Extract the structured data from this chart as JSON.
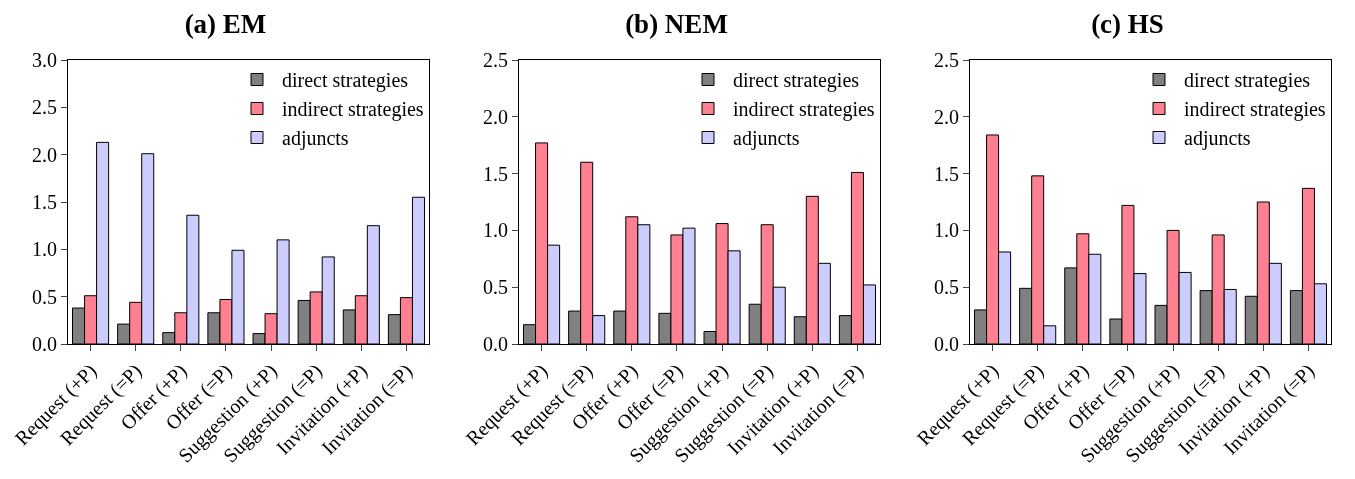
{
  "chart_data": [
    {
      "type": "bar",
      "title": "(a) EM",
      "categories": [
        "Request (+P)",
        "Request (=P)",
        "Offer (+P)",
        "Offer (=P)",
        "Suggestion (+P)",
        "Suggestion (=P)",
        "Invitation (+P)",
        "Invitation (=P)"
      ],
      "series": [
        {
          "name": "direct strategies",
          "color": "#808080",
          "values": [
            0.38,
            0.21,
            0.12,
            0.33,
            0.11,
            0.46,
            0.36,
            0.31
          ]
        },
        {
          "name": "indirect strategies",
          "color": "#ff8090",
          "values": [
            0.51,
            0.44,
            0.33,
            0.47,
            0.32,
            0.55,
            0.51,
            0.49
          ]
        },
        {
          "name": "adjuncts",
          "color": "#ccccff",
          "values": [
            2.13,
            2.01,
            1.36,
            0.99,
            1.1,
            0.92,
            1.25,
            1.55
          ]
        }
      ],
      "ylim": [
        0,
        3.0
      ],
      "yticks": [
        {
          "value": 0,
          "label": "0.0"
        },
        0.5,
        {
          "value": 1,
          "label": "1.0"
        },
        1.5,
        {
          "value": 2,
          "label": "2.0"
        },
        2.5,
        {
          "value": 3,
          "label": "3.0"
        }
      ],
      "grid": false,
      "legend": "top right"
    },
    {
      "type": "bar",
      "title": "(b) NEM",
      "categories": [
        "Request (+P)",
        "Request (=P)",
        "Offer (+P)",
        "Offer (=P)",
        "Suggestion (+P)",
        "Suggestion (=P)",
        "Invitation (+P)",
        "Invitation (=P)"
      ],
      "series": [
        {
          "name": "direct strategies",
          "color": "#808080",
          "values": [
            0.17,
            0.29,
            0.29,
            0.27,
            0.11,
            0.35,
            0.24,
            0.25
          ]
        },
        {
          "name": "indirect strategies",
          "color": "#ff8090",
          "values": [
            1.77,
            1.6,
            1.12,
            0.96,
            1.06,
            1.05,
            1.3,
            1.51
          ]
        },
        {
          "name": "adjuncts",
          "color": "#ccccff",
          "values": [
            0.87,
            0.25,
            1.05,
            1.02,
            0.82,
            0.5,
            0.71,
            0.52
          ]
        }
      ],
      "ylim": [
        0,
        2.5
      ],
      "yticks": [
        {
          "value": 0,
          "label": "0.0"
        },
        0.5,
        {
          "value": 1,
          "label": "1.0"
        },
        1.5,
        {
          "value": 2,
          "label": "2.0"
        },
        2.5
      ],
      "grid": false,
      "legend": "top right"
    },
    {
      "type": "bar",
      "title": "(c) HS",
      "categories": [
        "Request (+P)",
        "Request (=P)",
        "Offer (+P)",
        "Offer (=P)",
        "Suggestion (+P)",
        "Suggestion (=P)",
        "Invitation (+P)",
        "Invitation (=P)"
      ],
      "series": [
        {
          "name": "direct strategies",
          "color": "#808080",
          "values": [
            0.3,
            0.49,
            0.67,
            0.22,
            0.34,
            0.47,
            0.42,
            0.47
          ]
        },
        {
          "name": "indirect strategies",
          "color": "#ff8090",
          "values": [
            1.84,
            1.48,
            0.97,
            1.22,
            1.0,
            0.96,
            1.25,
            1.37
          ]
        },
        {
          "name": "adjuncts",
          "color": "#ccccff",
          "values": [
            0.81,
            0.16,
            0.79,
            0.62,
            0.63,
            0.48,
            0.71,
            0.53
          ]
        }
      ],
      "ylim": [
        0,
        2.5
      ],
      "yticks": [
        {
          "value": 0,
          "label": "0.0"
        },
        0.5,
        {
          "value": 1,
          "label": "1.0"
        },
        1.5,
        {
          "value": 2,
          "label": "2.0"
        },
        2.5
      ],
      "grid": false,
      "legend": "top right"
    }
  ]
}
